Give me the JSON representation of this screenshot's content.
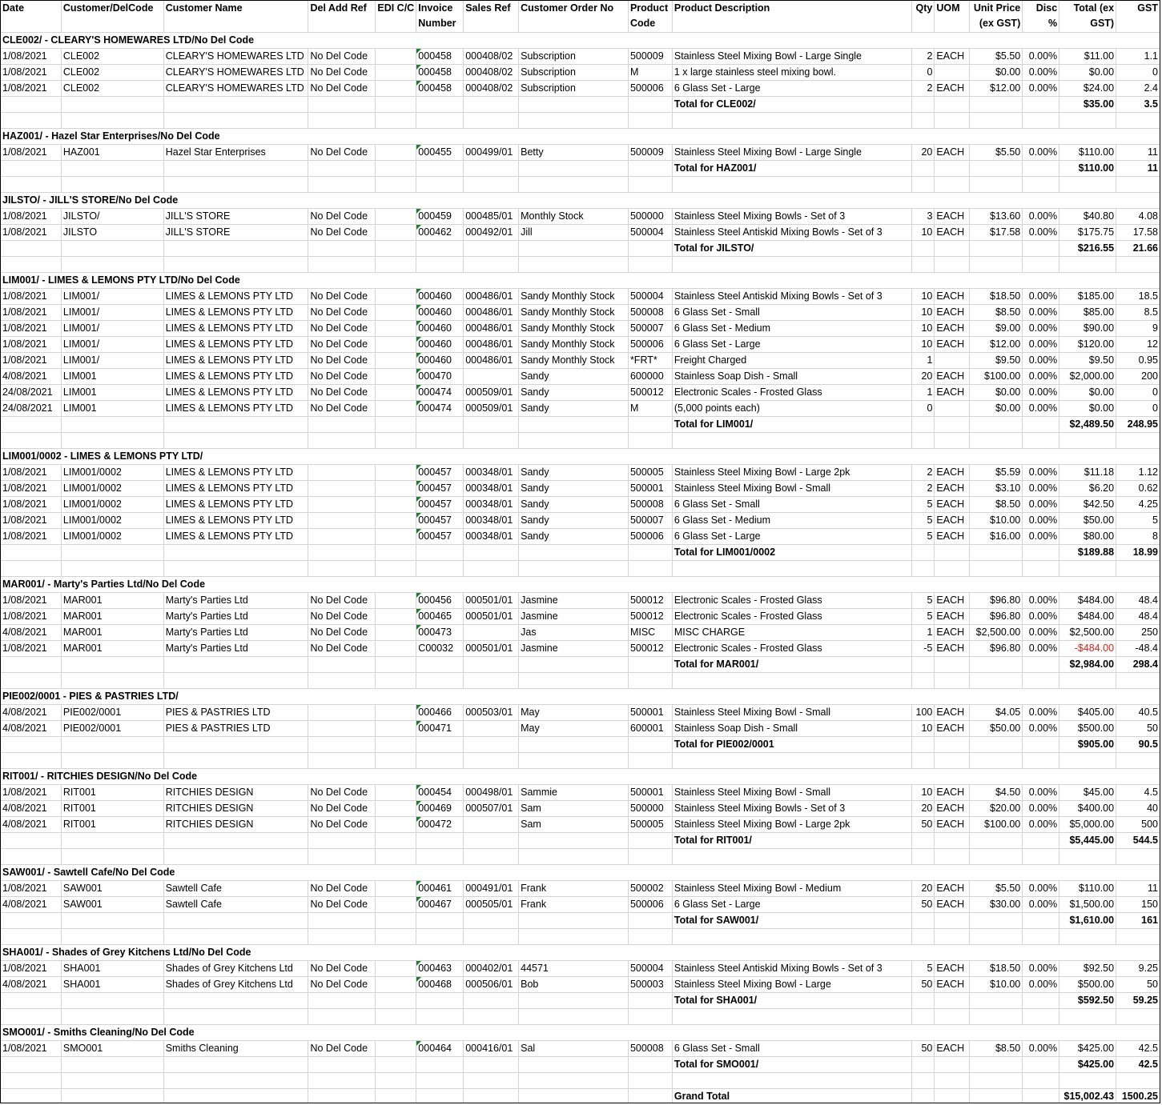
{
  "columns": [
    "Date",
    "Customer/DelCode",
    "Customer Name",
    "Del Add Ref",
    "EDI C/C",
    "Invoice Number",
    "Sales Ref",
    "Customer Order No",
    "Product Code",
    "Product Description",
    "Qty",
    "UOM",
    "Unit Price (ex GST)",
    "Disc %",
    "Total (ex GST)",
    "GST"
  ],
  "groups": [
    {
      "title": "CLE002/ - CLEARY'S HOMEWARES LTD/No Del Code",
      "items": [
        [
          "1/08/2021",
          "CLE002",
          "CLEARY'S HOMEWARES LTD",
          "No Del Code",
          "",
          "000458",
          "000408/02",
          "Subscription",
          "500009",
          "Stainless Steel Mixing Bowl - Large Single",
          "2",
          "EACH",
          "$5.50",
          "0.00%",
          "$11.00",
          "1.1"
        ],
        [
          "1/08/2021",
          "CLE002",
          "CLEARY'S HOMEWARES LTD",
          "No Del Code",
          "",
          "000458",
          "000408/02",
          "Subscription",
          "M",
          "1 x large stainless steel mixing bowl.",
          "0",
          "",
          "$0.00",
          "0.00%",
          "$0.00",
          "0"
        ],
        [
          "1/08/2021",
          "CLE002",
          "CLEARY'S HOMEWARES LTD",
          "No Del Code",
          "",
          "000458",
          "000408/02",
          "Subscription",
          "500006",
          "6 Glass Set - Large",
          "2",
          "EACH",
          "$12.00",
          "0.00%",
          "$24.00",
          "2.4"
        ]
      ],
      "total_label": "Total for CLE002/",
      "total": "$35.00",
      "gst": "3.5"
    },
    {
      "title": "HAZ001/ - Hazel Star Enterprises/No Del Code",
      "items": [
        [
          "1/08/2021",
          "HAZ001",
          "Hazel Star Enterprises",
          "No Del Code",
          "",
          "000455",
          "000499/01",
          "Betty",
          "500009",
          "Stainless Steel Mixing Bowl - Large Single",
          "20",
          "EACH",
          "$5.50",
          "0.00%",
          "$110.00",
          "11"
        ]
      ],
      "total_label": "Total for HAZ001/",
      "total": "$110.00",
      "gst": "11"
    },
    {
      "title": "JILSTO/    - JILL'S STORE/No Del Code",
      "items": [
        [
          "1/08/2021",
          "JILSTO/",
          "JILL'S STORE",
          "No Del Code",
          "",
          "000459",
          "000485/01",
          "Monthly Stock",
          "500000",
          "Stainless Steel Mixing Bowls - Set of 3",
          "3",
          "EACH",
          "$13.60",
          "0.00%",
          "$40.80",
          "4.08"
        ],
        [
          "1/08/2021",
          "JILSTO",
          "JILL'S STORE",
          "No Del Code",
          "",
          "000462",
          "000492/01",
          "Jill",
          "500004",
          "Stainless Steel Antiskid Mixing Bowls - Set of 3",
          "10",
          "EACH",
          "$17.58",
          "0.00%",
          "$175.75",
          "17.58"
        ]
      ],
      "total_label": "Total for JILSTO/",
      "total": "$216.55",
      "gst": "21.66"
    },
    {
      "title": "LIM001/    - LIMES & LEMONS PTY LTD/No Del Code",
      "items": [
        [
          "1/08/2021",
          "LIM001/",
          "LIMES & LEMONS PTY LTD",
          "No Del Code",
          "",
          "000460",
          "000486/01",
          "Sandy Monthly Stock",
          "500004",
          "Stainless Steel Antiskid Mixing Bowls - Set of 3",
          "10",
          "EACH",
          "$18.50",
          "0.00%",
          "$185.00",
          "18.5"
        ],
        [
          "1/08/2021",
          "LIM001/",
          "LIMES & LEMONS PTY LTD",
          "No Del Code",
          "",
          "000460",
          "000486/01",
          "Sandy Monthly Stock",
          "500008",
          "6 Glass Set - Small",
          "10",
          "EACH",
          "$8.50",
          "0.00%",
          "$85.00",
          "8.5"
        ],
        [
          "1/08/2021",
          "LIM001/",
          "LIMES & LEMONS PTY LTD",
          "No Del Code",
          "",
          "000460",
          "000486/01",
          "Sandy Monthly Stock",
          "500007",
          "6 Glass Set - Medium",
          "10",
          "EACH",
          "$9.00",
          "0.00%",
          "$90.00",
          "9"
        ],
        [
          "1/08/2021",
          "LIM001/",
          "LIMES & LEMONS PTY LTD",
          "No Del Code",
          "",
          "000460",
          "000486/01",
          "Sandy Monthly Stock",
          "500006",
          "6 Glass Set - Large",
          "10",
          "EACH",
          "$12.00",
          "0.00%",
          "$120.00",
          "12"
        ],
        [
          "1/08/2021",
          "LIM001/",
          "LIMES & LEMONS PTY LTD",
          "No Del Code",
          "",
          "000460",
          "000486/01",
          "Sandy Monthly Stock",
          "*FRT*",
          "Freight Charged",
          "1",
          "",
          "$9.50",
          "0.00%",
          "$9.50",
          "0.95"
        ],
        [
          "4/08/2021",
          "LIM001",
          "LIMES & LEMONS PTY LTD",
          "No Del Code",
          "",
          "000470",
          "",
          "Sandy",
          "600000",
          "Stainless Soap Dish - Small",
          "20",
          "EACH",
          "$100.00",
          "0.00%",
          "$2,000.00",
          "200"
        ],
        [
          "24/08/2021",
          "LIM001",
          "LIMES & LEMONS PTY LTD",
          "No Del Code",
          "",
          "000474",
          "000509/01",
          "Sandy",
          "500012",
          "Electronic Scales - Frosted Glass",
          "1",
          "EACH",
          "$0.00",
          "0.00%",
          "$0.00",
          "0"
        ],
        [
          "24/08/2021",
          "LIM001",
          "LIMES & LEMONS PTY LTD",
          "No Del Code",
          "",
          "000474",
          "000509/01",
          "Sandy",
          "M",
          "(5,000 points each)",
          "0",
          "",
          "$0.00",
          "0.00%",
          "$0.00",
          "0"
        ]
      ],
      "total_label": "Total for LIM001/",
      "total": "$2,489.50",
      "gst": "248.95"
    },
    {
      "title": "LIM001/0002 - LIMES & LEMONS PTY LTD/",
      "items": [
        [
          "1/08/2021",
          "LIM001/0002",
          "LIMES & LEMONS PTY LTD",
          "",
          "",
          "000457",
          "000348/01",
          "Sandy",
          "500005",
          "Stainless Steel Mixing Bowl - Large 2pk",
          "2",
          "EACH",
          "$5.59",
          "0.00%",
          "$11.18",
          "1.12"
        ],
        [
          "1/08/2021",
          "LIM001/0002",
          "LIMES & LEMONS PTY LTD",
          "",
          "",
          "000457",
          "000348/01",
          "Sandy",
          "500001",
          "Stainless Steel Mixing Bowl - Small",
          "2",
          "EACH",
          "$3.10",
          "0.00%",
          "$6.20",
          "0.62"
        ],
        [
          "1/08/2021",
          "LIM001/0002",
          "LIMES & LEMONS PTY LTD",
          "",
          "",
          "000457",
          "000348/01",
          "Sandy",
          "500008",
          "6 Glass Set - Small",
          "5",
          "EACH",
          "$8.50",
          "0.00%",
          "$42.50",
          "4.25"
        ],
        [
          "1/08/2021",
          "LIM001/0002",
          "LIMES & LEMONS PTY LTD",
          "",
          "",
          "000457",
          "000348/01",
          "Sandy",
          "500007",
          "6 Glass Set - Medium",
          "5",
          "EACH",
          "$10.00",
          "0.00%",
          "$50.00",
          "5"
        ],
        [
          "1/08/2021",
          "LIM001/0002",
          "LIMES & LEMONS PTY LTD",
          "",
          "",
          "000457",
          "000348/01",
          "Sandy",
          "500006",
          "6 Glass Set - Large",
          "5",
          "EACH",
          "$16.00",
          "0.00%",
          "$80.00",
          "8"
        ]
      ],
      "total_label": "Total for LIM001/0002",
      "total": "$189.88",
      "gst": "18.99"
    },
    {
      "title": "MAR001/ - Marty's Parties Ltd/No Del Code",
      "items": [
        [
          "1/08/2021",
          "MAR001",
          "Marty's Parties Ltd",
          "No Del Code",
          "",
          "000456",
          "000501/01",
          "Jasmine",
          "500012",
          "Electronic Scales - Frosted Glass",
          "5",
          "EACH",
          "$96.80",
          "0.00%",
          "$484.00",
          "48.4"
        ],
        [
          "1/08/2021",
          "MAR001",
          "Marty's Parties Ltd",
          "No Del Code",
          "",
          "000465",
          "000501/01",
          "Jasmine",
          "500012",
          "Electronic Scales - Frosted Glass",
          "5",
          "EACH",
          "$96.80",
          "0.00%",
          "$484.00",
          "48.4"
        ],
        [
          "4/08/2021",
          "MAR001",
          "Marty's Parties Ltd",
          "No Del Code",
          "",
          "000473",
          "",
          "Jas",
          "MISC",
          "MISC CHARGE",
          "1",
          "EACH",
          "$2,500.00",
          "0.00%",
          "$2,500.00",
          "250"
        ],
        [
          "1/08/2021",
          "MAR001",
          "Marty's Parties Ltd",
          "No Del Code",
          "",
          "C00032",
          "000501/01",
          "Jasmine",
          "500012",
          "Electronic Scales - Frosted Glass",
          "-5",
          "EACH",
          "$96.80",
          "0.00%",
          "-$484.00",
          "-48.4"
        ]
      ],
      "total_label": "Total for MAR001/",
      "total": "$2,984.00",
      "gst": "298.4"
    },
    {
      "title": "PIE002/0001 - PIES & PASTRIES LTD/",
      "items": [
        [
          "4/08/2021",
          "PIE002/0001",
          "PIES & PASTRIES LTD",
          "",
          "",
          "000466",
          "000503/01",
          "May",
          "500001",
          "Stainless Steel Mixing Bowl - Small",
          "100",
          "EACH",
          "$4.05",
          "0.00%",
          "$405.00",
          "40.5"
        ],
        [
          "4/08/2021",
          "PIE002/0001",
          "PIES & PASTRIES LTD",
          "",
          "",
          "000471",
          "",
          "May",
          "600001",
          "Stainless Soap Dish - Small",
          "10",
          "EACH",
          "$50.00",
          "0.00%",
          "$500.00",
          "50"
        ]
      ],
      "total_label": "Total for PIE002/0001",
      "total": "$905.00",
      "gst": "90.5"
    },
    {
      "title": "RIT001/ - RITCHIES DESIGN/No Del Code",
      "items": [
        [
          "1/08/2021",
          "RIT001",
          "RITCHIES DESIGN",
          "No Del Code",
          "",
          "000454",
          "000498/01",
          "Sammie",
          "500001",
          "Stainless Steel Mixing Bowl - Small",
          "10",
          "EACH",
          "$4.50",
          "0.00%",
          "$45.00",
          "4.5"
        ],
        [
          "4/08/2021",
          "RIT001",
          "RITCHIES DESIGN",
          "No Del Code",
          "",
          "000469",
          "000507/01",
          "Sam",
          "500000",
          "Stainless Steel Mixing Bowls - Set of 3",
          "20",
          "EACH",
          "$20.00",
          "0.00%",
          "$400.00",
          "40"
        ],
        [
          "4/08/2021",
          "RIT001",
          "RITCHIES DESIGN",
          "No Del Code",
          "",
          "000472",
          "",
          "Sam",
          "500005",
          "Stainless Steel Mixing Bowl - Large 2pk",
          "50",
          "EACH",
          "$100.00",
          "0.00%",
          "$5,000.00",
          "500"
        ]
      ],
      "total_label": "Total for RIT001/",
      "total": "$5,445.00",
      "gst": "544.5"
    },
    {
      "title": "SAW001/ - Sawtell Cafe/No Del Code",
      "items": [
        [
          "1/08/2021",
          "SAW001",
          "Sawtell Cafe",
          "No Del Code",
          "",
          "000461",
          "000491/01",
          "Frank",
          "500002",
          "Stainless Steel Mixing Bowl - Medium",
          "20",
          "EACH",
          "$5.50",
          "0.00%",
          "$110.00",
          "11"
        ],
        [
          "4/08/2021",
          "SAW001",
          "Sawtell Cafe",
          "No Del Code",
          "",
          "000467",
          "000505/01",
          "Frank",
          "500006",
          "6 Glass Set - Large",
          "50",
          "EACH",
          "$30.00",
          "0.00%",
          "$1,500.00",
          "150"
        ]
      ],
      "total_label": "Total for SAW001/",
      "total": "$1,610.00",
      "gst": "161"
    },
    {
      "title": "SHA001/ - Shades of Grey Kitchens Ltd/No Del Code",
      "items": [
        [
          "1/08/2021",
          "SHA001",
          "Shades of Grey Kitchens Ltd",
          "No Del Code",
          "",
          "000463",
          "000402/01",
          "44571",
          "500004",
          "Stainless Steel Antiskid Mixing Bowls - Set of 3",
          "5",
          "EACH",
          "$18.50",
          "0.00%",
          "$92.50",
          "9.25"
        ],
        [
          "4/08/2021",
          "SHA001",
          "Shades of Grey Kitchens Ltd",
          "No Del Code",
          "",
          "000468",
          "000506/01",
          "Bob",
          "500003",
          "Stainless Steel Mixing Bowl - Large",
          "50",
          "EACH",
          "$10.00",
          "0.00%",
          "$500.00",
          "50"
        ]
      ],
      "total_label": "Total for SHA001/",
      "total": "$592.50",
      "gst": "59.25"
    },
    {
      "title": "SMO001/ - Smiths Cleaning/No Del Code",
      "items": [
        [
          "1/08/2021",
          "SMO001",
          "Smiths Cleaning",
          "No Del Code",
          "",
          "000464",
          "000416/01",
          "Sal",
          "500008",
          "6 Glass Set - Small",
          "50",
          "EACH",
          "$8.50",
          "0.00%",
          "$425.00",
          "42.5"
        ]
      ],
      "total_label": "Total for SMO001/",
      "total": "$425.00",
      "gst": "42.5"
    }
  ],
  "grand_total": {
    "label": "Grand Total",
    "total": "$15,002.43",
    "gst": "1500.25"
  },
  "colors": {
    "negative": "#e0201b",
    "text_number_marker": "#1e7b34",
    "grid": "#d4d4d4"
  }
}
